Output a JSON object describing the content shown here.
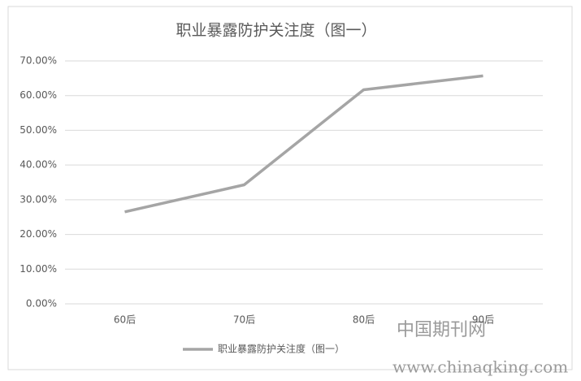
{
  "chart_data": {
    "type": "line",
    "title": "职业暴露防护关注度（图一）",
    "categories": [
      "60后",
      "70后",
      "80后",
      "90后"
    ],
    "series": [
      {
        "name": "职业暴露防护关注度（图一）",
        "color": "#a5a5a5",
        "values": [
          26.5,
          34.3,
          61.7,
          65.7
        ]
      }
    ],
    "ylim": [
      0,
      70
    ],
    "yticks": [
      {
        "value": 0,
        "label": "0.00%"
      },
      {
        "value": 10,
        "label": "10.00%"
      },
      {
        "value": 20,
        "label": "20.00%"
      },
      {
        "value": 30,
        "label": "30.00%"
      },
      {
        "value": 40,
        "label": "40.00%"
      },
      {
        "value": 50,
        "label": "50.00%"
      },
      {
        "value": 60,
        "label": "60.00%"
      },
      {
        "value": 70,
        "label": "70.00%"
      }
    ],
    "grid": true,
    "legend": "bottom",
    "watermark": [
      "中国期刊网",
      "www.chinaqking.com"
    ]
  }
}
